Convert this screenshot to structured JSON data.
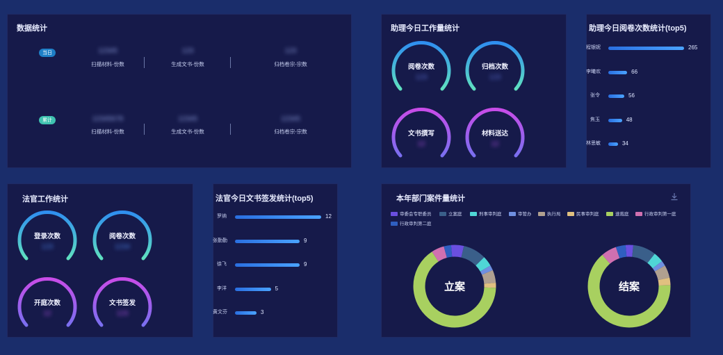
{
  "stats_panel": {
    "title": "数据统计",
    "rows": [
      {
        "pill": "当日",
        "pill_color": "#1e7fc7",
        "items": [
          {
            "value": "12345",
            "label": "扫描材料-份数"
          },
          {
            "value": "123",
            "label": "生成文书-份数"
          },
          {
            "value": "123",
            "label": "归档卷宗-宗数"
          }
        ]
      },
      {
        "pill": "累计",
        "pill_color": "#3fc2b0",
        "items": [
          {
            "value": "12345678",
            "label": "扫描材料-份数"
          },
          {
            "value": "12345",
            "label": "生成文书-份数"
          },
          {
            "value": "12345",
            "label": "归档卷宗-宗数"
          }
        ]
      }
    ]
  },
  "assistant_panel": {
    "title": "助理今日工作量统计",
    "gauges": [
      {
        "label": "阅卷次数",
        "value": "123",
        "color": "#5fe0c0",
        "value_color": "#5a6fd0"
      },
      {
        "label": "归档次数",
        "value": "123",
        "color": "#5fe0c0",
        "value_color": "#5a6fd0"
      },
      {
        "label": "文书撰写",
        "value": "12",
        "color": "#b050e0",
        "value_color": "#b050e0"
      },
      {
        "label": "材料送达",
        "value": "12",
        "color": "#b050e0",
        "value_color": "#b050e0"
      }
    ]
  },
  "assistant_top5": {
    "title": "助理今日阅卷次数统计(top5)",
    "items": [
      {
        "name": "程银妮",
        "value": 265
      },
      {
        "name": "李曦欢",
        "value": 66
      },
      {
        "name": "张令",
        "value": 56
      },
      {
        "name": "焦玉",
        "value": 48
      },
      {
        "name": "林思敏",
        "value": 34
      }
    ],
    "max": 265
  },
  "judge_panel": {
    "title": "法官工作统计",
    "gauges": [
      {
        "label": "登录次数",
        "value": "123",
        "color": "#5fe0c0",
        "value_color": "#4a7fe0"
      },
      {
        "label": "阅卷次数",
        "value": "1234",
        "color": "#5fe0c0",
        "value_color": "#4a7fe0"
      },
      {
        "label": "开庭次数",
        "value": "12",
        "color": "#b050e0",
        "value_color": "#b050e0"
      },
      {
        "label": "文书签发",
        "value": "123",
        "color": "#b050e0",
        "value_color": "#b050e0"
      }
    ]
  },
  "judge_top5": {
    "title": "法官今日文书签发统计(top5)",
    "items": [
      {
        "name": "罗纳",
        "value": 12
      },
      {
        "name": "张勤勤",
        "value": 9
      },
      {
        "name": "徐飞",
        "value": 9
      },
      {
        "name": "李洋",
        "value": 5
      },
      {
        "name": "黄文芬",
        "value": 3
      }
    ],
    "max": 12
  },
  "case_panel": {
    "title": "本年部门案件量统计",
    "download_icon": "download-icon",
    "legend": [
      {
        "name": "审委会专职委员",
        "color": "#6a4fe0"
      },
      {
        "name": "立案庭",
        "color": "#3a5f8a"
      },
      {
        "name": "刑事审判庭",
        "color": "#4fd6d6"
      },
      {
        "name": "审管办",
        "color": "#6f8fe0"
      },
      {
        "name": "执行局",
        "color": "#b0a090"
      },
      {
        "name": "民事审判庭",
        "color": "#e0c080"
      },
      {
        "name": "速裁庭",
        "color": "#a8d060"
      },
      {
        "name": "行政审判第一庭",
        "color": "#d070b0"
      },
      {
        "name": "行政审判第二庭",
        "color": "#2f5fc0"
      }
    ],
    "donuts": [
      {
        "center": "立案",
        "segments": [
          0.05,
          0.09,
          0.04,
          0.02,
          0.05,
          0.02,
          0.65,
          0.05,
          0.03
        ]
      },
      {
        "center": "结案",
        "segments": [
          0.03,
          0.09,
          0.04,
          0.02,
          0.05,
          0.03,
          0.64,
          0.06,
          0.04
        ]
      }
    ]
  }
}
